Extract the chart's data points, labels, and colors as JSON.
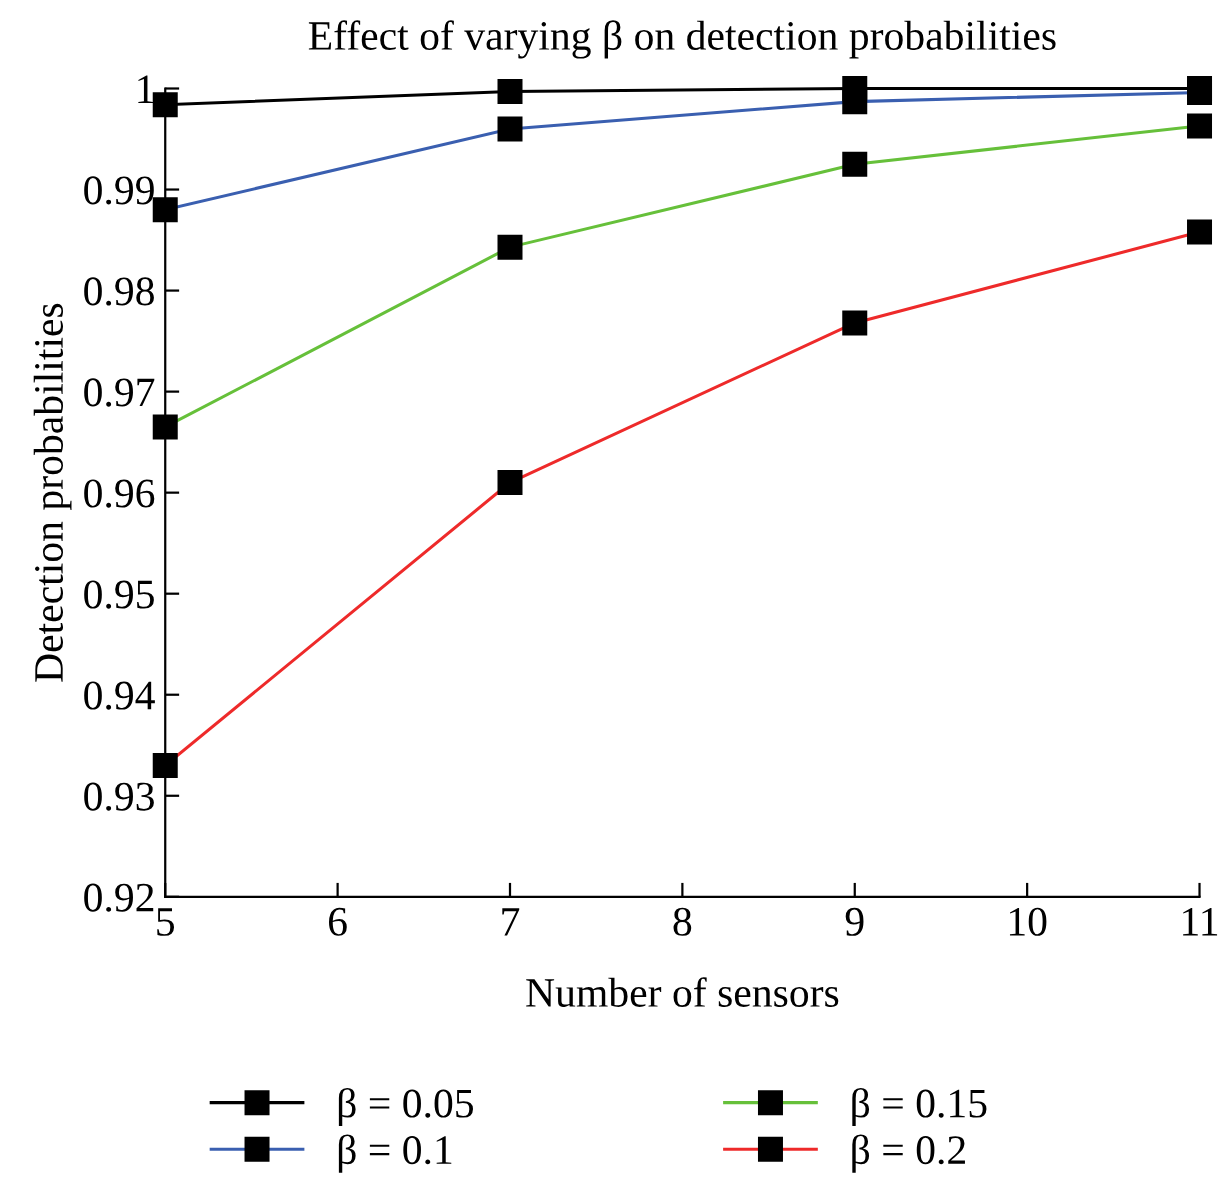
{
  "chart_data": {
    "type": "line",
    "title": "Effect of varying β on detection probabilities",
    "xlabel": "Number of sensors",
    "ylabel": "Detection probabilities",
    "x": [
      5,
      7,
      9,
      11
    ],
    "series": [
      {
        "name": "β = 0.05",
        "color": "#000000",
        "values": [
          0.9984,
          0.9997,
          1.0,
          1.0
        ]
      },
      {
        "name": "β = 0.1",
        "color": "#3a5fb0",
        "values": [
          0.988,
          0.996,
          0.9987,
          0.9996
        ]
      },
      {
        "name": "β = 0.15",
        "color": "#66c03a",
        "values": [
          0.9665,
          0.9843,
          0.9925,
          0.9963
        ]
      },
      {
        "name": "β = 0.2",
        "color": "#ee2a2a",
        "values": [
          0.933,
          0.961,
          0.9768,
          0.9858
        ]
      }
    ],
    "xlim": [
      5,
      11
    ],
    "xticks": [
      5,
      6,
      7,
      8,
      9,
      10,
      11
    ],
    "ylim": [
      0.92,
      1
    ],
    "yticks": [
      0.92,
      0.93,
      0.94,
      0.95,
      0.96,
      0.97,
      0.98,
      0.99,
      1
    ],
    "marker": "square",
    "line_style": "solid",
    "grid": false,
    "legend": "bottom"
  }
}
